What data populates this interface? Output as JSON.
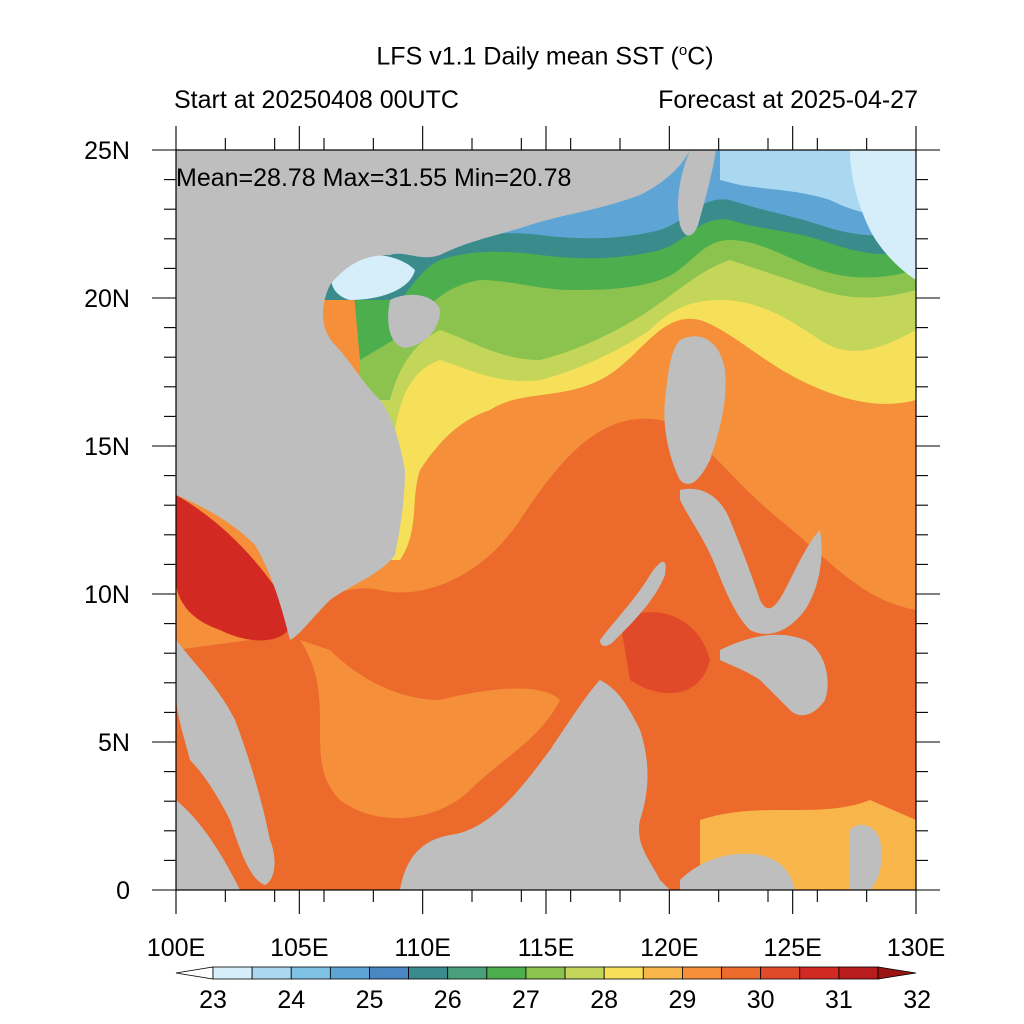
{
  "title": {
    "prefix": "LFS v1.1 Daily mean SST (",
    "degree": "o",
    "suffix": "C)"
  },
  "subtitle_left": "Start at 20250408 00UTC",
  "subtitle_right": "Forecast at 2025-04-27",
  "stats": "Mean=28.78  Max=31.55  Min=20.78",
  "lat_labels": [
    "0",
    "5N",
    "10N",
    "15N",
    "20N",
    "25N"
  ],
  "lon_labels": [
    "100E",
    "105E",
    "110E",
    "115E",
    "120E",
    "125E",
    "130E"
  ],
  "colorbar": {
    "labels": [
      "23",
      "24",
      "25",
      "26",
      "27",
      "28",
      "29",
      "30",
      "31",
      "32"
    ],
    "colors": [
      "#ffffff",
      "#d6eefa",
      "#a9d8f0",
      "#7fc2e6",
      "#5ea5d5",
      "#4a86c2",
      "#3a8c8c",
      "#4aa07a",
      "#4cae4c",
      "#8cc34e",
      "#c4d65a",
      "#f6e05a",
      "#f8b64a",
      "#f58f3a",
      "#ec6a2c",
      "#e04a28",
      "#d22a22",
      "#b81c1c",
      "#9a1414"
    ]
  },
  "colors": {
    "land": "#bebebe",
    "sea_hot": "#ec6a2c"
  }
}
